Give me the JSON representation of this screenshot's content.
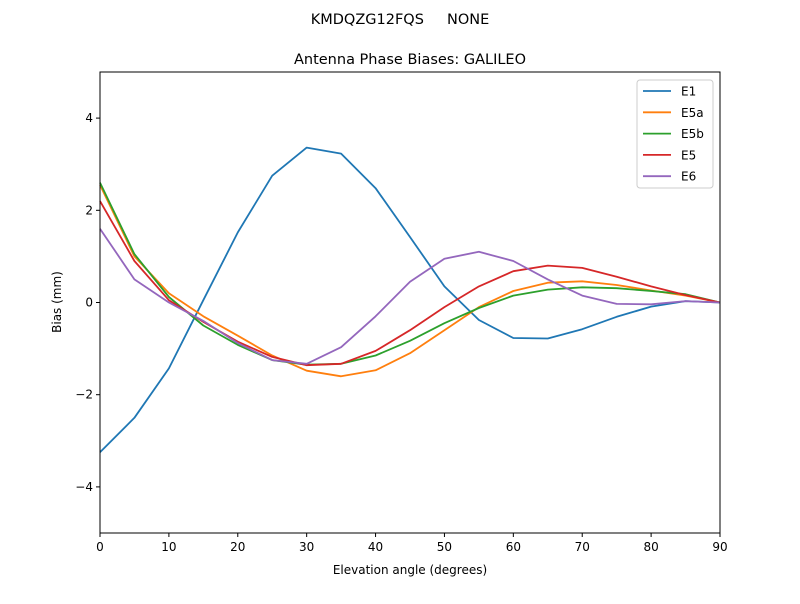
{
  "suptitle": "KMDQZG12FQS     NONE",
  "chart_data": {
    "type": "line",
    "title": "Antenna Phase Biases: GALILEO",
    "xlabel": "Elevation angle (degrees)",
    "ylabel": "Bias (mm)",
    "xlim": [
      0,
      90
    ],
    "ylim": [
      -5,
      5
    ],
    "xticks": [
      0,
      10,
      20,
      30,
      40,
      50,
      60,
      70,
      80,
      90
    ],
    "yticks": [
      -4,
      -2,
      0,
      2,
      4
    ],
    "ytick_labels": [
      "−4",
      "−2",
      "0",
      "2",
      "4"
    ],
    "grid": false,
    "legend_position": "top-right",
    "x": [
      0,
      5,
      10,
      15,
      20,
      25,
      30,
      35,
      40,
      45,
      50,
      55,
      60,
      65,
      70,
      75,
      80,
      85,
      90
    ],
    "series": [
      {
        "name": "E1",
        "color": "#1f77b4",
        "values": [
          -3.25,
          -2.5,
          -1.43,
          0.05,
          1.52,
          2.75,
          3.36,
          3.23,
          2.48,
          1.42,
          0.35,
          -0.38,
          -0.77,
          -0.78,
          -0.58,
          -0.31,
          -0.09,
          0.03,
          0.0
        ]
      },
      {
        "name": "E5a",
        "color": "#ff7f0e",
        "values": [
          2.55,
          1.0,
          0.2,
          -0.3,
          -0.72,
          -1.15,
          -1.48,
          -1.6,
          -1.47,
          -1.1,
          -0.6,
          -0.1,
          0.25,
          0.43,
          0.46,
          0.38,
          0.26,
          0.15,
          0.0
        ]
      },
      {
        "name": "E5b",
        "color": "#2ca02c",
        "values": [
          2.6,
          1.05,
          0.12,
          -0.5,
          -0.92,
          -1.25,
          -1.35,
          -1.33,
          -1.15,
          -0.83,
          -0.45,
          -0.12,
          0.15,
          0.28,
          0.33,
          0.31,
          0.25,
          0.18,
          0.0
        ]
      },
      {
        "name": "E5",
        "color": "#d62728",
        "values": [
          2.2,
          0.9,
          0.05,
          -0.42,
          -0.85,
          -1.18,
          -1.36,
          -1.33,
          -1.05,
          -0.6,
          -0.1,
          0.35,
          0.68,
          0.8,
          0.75,
          0.56,
          0.35,
          0.16,
          0.0
        ]
      },
      {
        "name": "E6",
        "color": "#9467bd",
        "values": [
          1.6,
          0.5,
          0.0,
          -0.4,
          -0.88,
          -1.25,
          -1.33,
          -0.97,
          -0.3,
          0.45,
          0.95,
          1.1,
          0.9,
          0.5,
          0.15,
          -0.03,
          -0.04,
          0.03,
          0.0
        ]
      }
    ]
  }
}
